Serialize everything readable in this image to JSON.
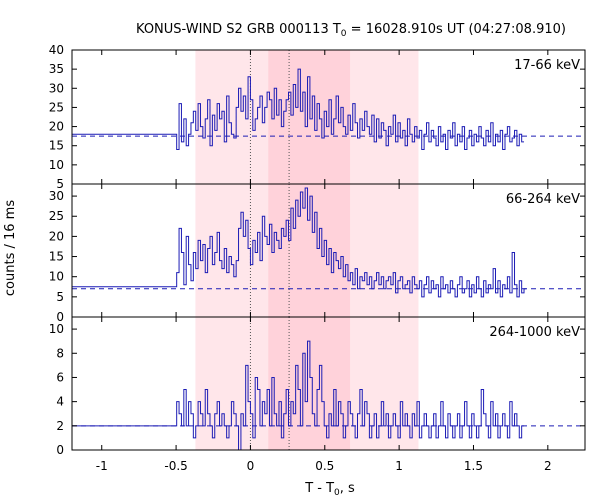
{
  "chart_data": {
    "type": "line",
    "title": "KONUS-WIND S2 GRB 000113 T",
    "title_sub": "0",
    "title_rest": " = 16028.910s UT (04:27:08.910)",
    "xlabel": "T - T",
    "xlabel_sub": "0",
    "xlabel_rest": ", s",
    "ylabel": "counts / 16 ms",
    "xlim": [
      -1.2,
      2.25
    ],
    "x_ticks": [
      "-1",
      "-0.5",
      "0",
      "0.5",
      "1",
      "1.5",
      "2"
    ],
    "x_tick_values": [
      -1,
      -0.5,
      0,
      0.5,
      1,
      1.5,
      2
    ],
    "bin_width_s": 0.016,
    "series_start_s": -0.496,
    "shaded_regions": [
      {
        "from": -0.37,
        "to": 1.13,
        "color": "#ffe6ea"
      },
      {
        "from": 0.12,
        "to": 0.67,
        "color": "#ffd2da"
      }
    ],
    "vlines": [
      0,
      0.26
    ],
    "line_color": "#1c1cb5",
    "panels": [
      {
        "label": "17-66 keV",
        "ylim": [
          5,
          40
        ],
        "y_ticks": [
          "5",
          "10",
          "15",
          "20",
          "25",
          "30",
          "35",
          "40"
        ],
        "y_tick_values": [
          5,
          10,
          15,
          20,
          25,
          30,
          35,
          40
        ],
        "background_level": 17.5,
        "pre_level": 18,
        "values": [
          14,
          26,
          16,
          22,
          15,
          18,
          21,
          24,
          19,
          26,
          20,
          17,
          22,
          27,
          15,
          23,
          19,
          26,
          22,
          24,
          16,
          28,
          21,
          18,
          17,
          25,
          30,
          24,
          28,
          22,
          33,
          27,
          19,
          22,
          25,
          28,
          21,
          25,
          29,
          27,
          22,
          30,
          23,
          27,
          20,
          24,
          27,
          29,
          23,
          31,
          25,
          35,
          24,
          29,
          20,
          33,
          22,
          28,
          19,
          26,
          22,
          17,
          24,
          20,
          27,
          18,
          22,
          28,
          21,
          25,
          20,
          18,
          23,
          19,
          26,
          21,
          17,
          22,
          19,
          24,
          20,
          18,
          23,
          16,
          22,
          17,
          21,
          19,
          15,
          20,
          18,
          23,
          16,
          21,
          17,
          19,
          15,
          22,
          18,
          16,
          20,
          17,
          19,
          14,
          18,
          21,
          16,
          19,
          17,
          15,
          20,
          16,
          18,
          14,
          19,
          17,
          21,
          15,
          18,
          16,
          20,
          14,
          17,
          19,
          15,
          18,
          16,
          20,
          17,
          15,
          19,
          16,
          21,
          15,
          18,
          16,
          19,
          14,
          18,
          20,
          16,
          17,
          19,
          15,
          18,
          16
        ]
      },
      {
        "label": "66-264 keV",
        "ylim": [
          0,
          33
        ],
        "y_ticks": [
          "0",
          "5",
          "10",
          "15",
          "20",
          "25",
          "30"
        ],
        "y_tick_values": [
          0,
          5,
          10,
          15,
          20,
          25,
          30
        ],
        "background_level": 7,
        "pre_level": 7.5,
        "values": [
          11,
          22,
          16,
          8,
          20,
          13,
          9,
          16,
          12,
          19,
          14,
          18,
          11,
          17,
          20,
          13,
          16,
          21,
          14,
          12,
          17,
          11,
          15,
          13,
          10,
          14,
          22,
          26,
          20,
          24,
          17,
          13,
          19,
          16,
          21,
          14,
          25,
          20,
          18,
          23,
          16,
          21,
          19,
          17,
          22,
          20,
          24,
          19,
          27,
          22,
          29,
          25,
          31,
          27,
          32,
          24,
          30,
          21,
          26,
          17,
          22,
          15,
          19,
          13,
          17,
          11,
          16,
          14,
          12,
          15,
          10,
          13,
          9,
          11,
          8,
          12,
          7,
          10,
          9,
          11,
          8,
          10,
          7,
          9,
          11,
          8,
          10,
          7,
          9,
          10,
          8,
          11,
          6,
          9,
          10,
          7,
          8,
          9,
          6,
          10,
          8,
          7,
          9,
          5,
          8,
          10,
          6,
          9,
          7,
          8,
          5,
          10,
          7,
          8,
          6,
          9,
          7,
          5,
          8,
          10,
          6,
          7,
          9,
          5,
          8,
          6,
          10,
          7,
          5,
          9,
          6,
          8,
          7,
          12,
          6,
          9,
          5,
          8,
          7,
          10,
          6,
          16,
          8,
          5,
          9,
          6,
          7
        ]
      },
      {
        "label": "264-1000 keV",
        "ylim": [
          0,
          11
        ],
        "y_ticks": [
          "0",
          "2",
          "4",
          "6",
          "8",
          "10"
        ],
        "y_tick_values": [
          0,
          2,
          4,
          6,
          8,
          10
        ],
        "background_level": 2,
        "pre_level": 2,
        "values": [
          4,
          3,
          2,
          5,
          2,
          4,
          3,
          1,
          2,
          4,
          3,
          2,
          5,
          3,
          2,
          1,
          3,
          4,
          2,
          3,
          2,
          1,
          2,
          4,
          3,
          2,
          0,
          3,
          2,
          7,
          4,
          3,
          1,
          6,
          5,
          2,
          4,
          3,
          5,
          2,
          6,
          3,
          2,
          4,
          1,
          3,
          5,
          2,
          4,
          3,
          7,
          5,
          2,
          8,
          4,
          9,
          6,
          3,
          2,
          5,
          7,
          4,
          2,
          1,
          3,
          2,
          5,
          2,
          4,
          3,
          1,
          2,
          4,
          3,
          2,
          1,
          3,
          5,
          2,
          4,
          3,
          1,
          2,
          3,
          1,
          2,
          4,
          2,
          3,
          1,
          2,
          3,
          2,
          1,
          4,
          2,
          3,
          2,
          1,
          3,
          2,
          4,
          1,
          2,
          3,
          2,
          1,
          2,
          3,
          1,
          2,
          4,
          2,
          1,
          3,
          2,
          1,
          2,
          3,
          1,
          2,
          4,
          2,
          1,
          3,
          2,
          1,
          2,
          5,
          3,
          2,
          1,
          4,
          2,
          3,
          1,
          2,
          3,
          2,
          1,
          4,
          2,
          3,
          2,
          1,
          2
        ]
      }
    ]
  }
}
